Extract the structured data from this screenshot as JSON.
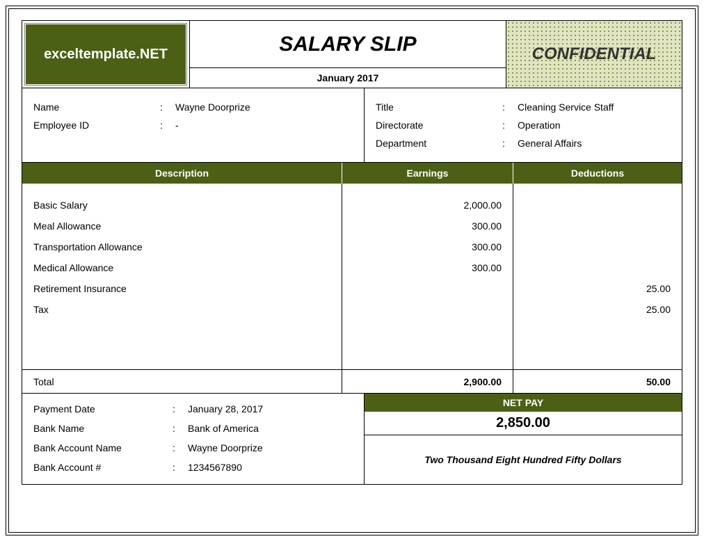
{
  "colors": {
    "olive": "#4b6015",
    "white": "#ffffff",
    "border": "#000000",
    "confidential_bg": "#e0e4c0",
    "confidential_dot": "#6b7a2a",
    "text": "#000000"
  },
  "header": {
    "logo_text": "exceltemplate.NET",
    "title": "SALARY SLIP",
    "period": "January 2017",
    "confidential": "CONFIDENTIAL"
  },
  "employee_left": {
    "name_label": "Name",
    "name_value": "Wayne Doorprize",
    "id_label": "Employee ID",
    "id_value": "-"
  },
  "employee_right": {
    "title_label": "Title",
    "title_value": "Cleaning Service Staff",
    "directorate_label": "Directorate",
    "directorate_value": "Operation",
    "department_label": "Department",
    "department_value": "General Affairs"
  },
  "table": {
    "head_description": "Description",
    "head_earnings": "Earnings",
    "head_deductions": "Deductions",
    "items": [
      {
        "desc": "Basic Salary",
        "earn": "2,000.00",
        "ded": ""
      },
      {
        "desc": "Meal Allowance",
        "earn": "300.00",
        "ded": ""
      },
      {
        "desc": "Transportation Allowance",
        "earn": "300.00",
        "ded": ""
      },
      {
        "desc": "Medical Allowance",
        "earn": "300.00",
        "ded": ""
      },
      {
        "desc": "Retirement Insurance",
        "earn": "",
        "ded": "25.00"
      },
      {
        "desc": "Tax",
        "earn": "",
        "ded": "25.00"
      }
    ],
    "total_label": "Total",
    "total_earn": "2,900.00",
    "total_ded": "50.00"
  },
  "payment": {
    "date_label": "Payment Date",
    "date_value": "January 28, 2017",
    "bank_label": "Bank Name",
    "bank_value": "Bank of America",
    "acct_name_label": "Bank Account Name",
    "acct_name_value": "Wayne Doorprize",
    "acct_num_label": "Bank Account #",
    "acct_num_value": "1234567890"
  },
  "net": {
    "label": "NET PAY",
    "value": "2,850.00",
    "words": "Two Thousand Eight Hundred Fifty Dollars"
  },
  "colon": ":"
}
